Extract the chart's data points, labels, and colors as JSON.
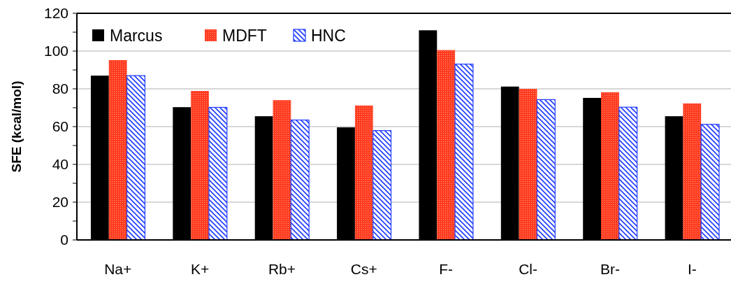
{
  "chart_data": {
    "type": "bar",
    "ylabel": "SFE (kcal/mol)",
    "categories": [
      "Na+",
      "K+",
      "Rb+",
      "Cs+",
      "F-",
      "Cl-",
      "Br-",
      "I-"
    ],
    "series": [
      {
        "name": "Marcus",
        "color": "#000000",
        "values": [
          87,
          70.3,
          65.5,
          59.6,
          111,
          81.2,
          75.2,
          65.5
        ]
      },
      {
        "name": "MDFT",
        "color": "#ff3b1f",
        "values": [
          95.2,
          78.9,
          74,
          71.2,
          100.5,
          80,
          78.2,
          72.3
        ]
      },
      {
        "name": "HNC",
        "color": "#1f3bff",
        "values": [
          87,
          70.2,
          63.5,
          57.9,
          93.1,
          74.3,
          70.3,
          61.2
        ]
      }
    ],
    "ylim": [
      0,
      120
    ],
    "yticks": [
      0,
      {
        "value": 10,
        "label": null
      },
      20,
      {
        "value": 30,
        "label": null
      },
      40,
      {
        "value": 50,
        "label": null
      },
      60,
      {
        "value": 70,
        "label": null
      },
      80,
      {
        "value": 90,
        "label": null
      },
      100,
      {
        "value": 110,
        "label": null
      },
      120
    ],
    "grid": "y",
    "legend": "top left"
  }
}
